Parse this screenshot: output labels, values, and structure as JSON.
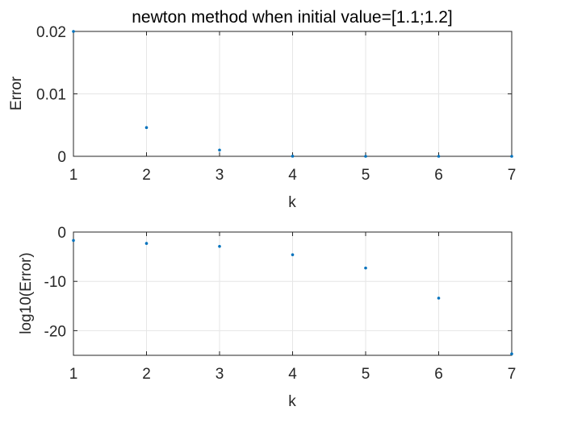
{
  "chart_data": [
    {
      "type": "scatter",
      "title": "newton method when initial value=[1.1;1.2]",
      "xlabel": "k",
      "ylabel": "Error",
      "xlim": [
        1,
        7
      ],
      "ylim": [
        0,
        0.02
      ],
      "grid": true,
      "x_ticks": [
        "1",
        "2",
        "3",
        "4",
        "5",
        "6",
        "7"
      ],
      "y_ticks": [
        "0",
        "0.01",
        "0.02"
      ],
      "series": [
        {
          "x": [
            1,
            2,
            3,
            4,
            5,
            6,
            7
          ],
          "y": [
            0.02,
            0.0046,
            0.001,
            2e-05,
            0.0,
            0.0,
            0.0
          ]
        }
      ],
      "color": "#0072bd"
    },
    {
      "type": "scatter",
      "title": "",
      "xlabel": "k",
      "ylabel": "log10(Error)",
      "xlim": [
        1,
        7
      ],
      "ylim": [
        -25,
        0
      ],
      "grid": true,
      "x_ticks": [
        "1",
        "2",
        "3",
        "4",
        "5",
        "6",
        "7"
      ],
      "y_ticks": [
        "0",
        "-10",
        "-20"
      ],
      "series": [
        {
          "x": [
            1,
            2,
            3,
            4,
            5,
            6,
            7
          ],
          "y": [
            -1.7,
            -2.3,
            -2.9,
            -4.6,
            -7.3,
            -13.4,
            -24.7
          ]
        }
      ],
      "color": "#0072bd"
    }
  ]
}
